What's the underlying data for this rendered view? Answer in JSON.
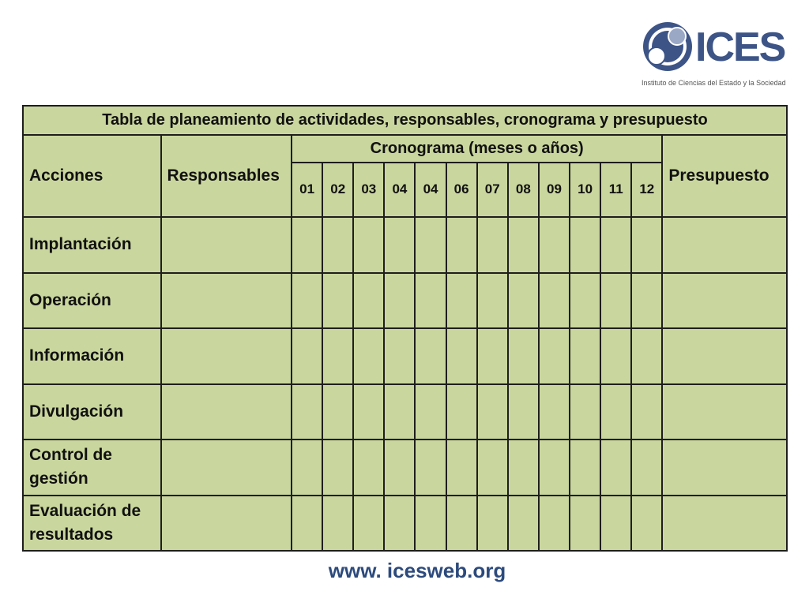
{
  "logo": {
    "wordmark": "ICES",
    "subtitle": "Instituto de Ciencias del Estado y la Sociedad",
    "colors": {
      "navy": "#3d5486",
      "steel": "#9aa8c6",
      "white": "#ffffff"
    }
  },
  "table": {
    "title": "Tabla de planeamiento de actividades, responsables, cronograma y presupuesto",
    "col_acciones": "Acciones",
    "col_responsables": "Responsables",
    "col_cronograma": "Cronograma (meses o años)",
    "col_presupuesto": "Presupuesto",
    "months": [
      "01",
      "02",
      "03",
      "04",
      "04",
      "06",
      "07",
      "08",
      "09",
      "10",
      "11",
      "12"
    ],
    "rows": [
      {
        "label": "Implantación"
      },
      {
        "label": "Operación"
      },
      {
        "label": "Información"
      },
      {
        "label": "Divulgación"
      },
      {
        "label": "Control de gestión"
      },
      {
        "label": "Evaluación de resultados"
      }
    ],
    "fill_color": "#c9d69d",
    "border_color": "#1e1e1e"
  },
  "footer": {
    "url": "www. icesweb.org"
  }
}
